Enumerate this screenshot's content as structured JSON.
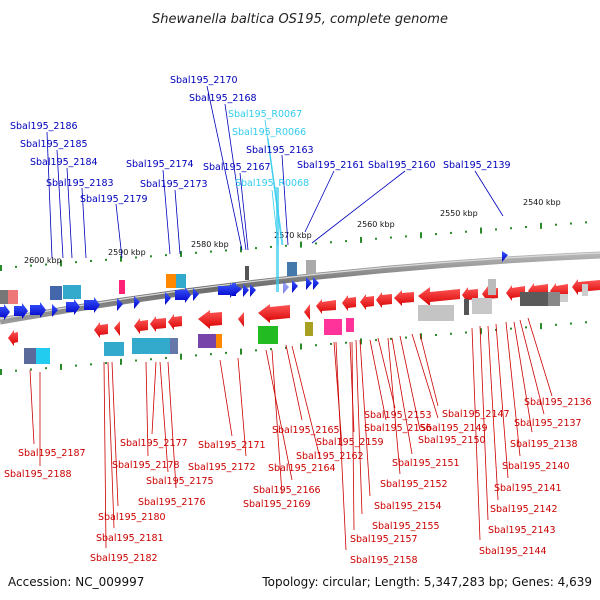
{
  "title": "Shewanella baltica OS195, complete genome",
  "footer": {
    "accession": "Accession: NC_009997",
    "info": "Topology: circular; Length: 5,347,283 bp; Genes: 4,639"
  },
  "colors": {
    "forward_gene": "#0000dd",
    "reverse_gene": "#ee0000",
    "forward_label": "#0000bb",
    "reverse_label": "#cc0000",
    "rna_label": "#33ccee",
    "backbone": "#7a7a7a",
    "tick": "#2a8a2a"
  },
  "scale_labels": [
    "2600 kbp",
    "2590 kbp",
    "2580 kbp",
    "2570 kbp",
    "2560 kbp",
    "2550 kbp",
    "2540 kbp"
  ],
  "labels_top": [
    "Sbal195_2170",
    "Sbal195_2168",
    "Sbal195_R0067",
    "Sbal195_R0066",
    "Sbal195_2186",
    "Sbal195_2185",
    "Sbal195_2163",
    "Sbal195_2184",
    "Sbal195_2174",
    "Sbal195_2167",
    "Sbal195_2161",
    "Sbal195_2160",
    "Sbal195_2139",
    "Sbal195_2183",
    "Sbal195_2173",
    "Sbal195_R0068",
    "Sbal195_2179"
  ],
  "labels_bottom": [
    "Sbal195_2136",
    "Sbal195_2147",
    "Sbal195_2137",
    "Sbal195_2153",
    "Sbal195_2156",
    "Sbal195_2149",
    "Sbal195_2165",
    "Sbal195_2159",
    "Sbal195_2177",
    "Sbal195_2171",
    "Sbal195_2150",
    "Sbal195_2138",
    "Sbal195_2187",
    "Sbal195_2162",
    "Sbal195_2178",
    "Sbal195_2172",
    "Sbal195_2164",
    "Sbal195_2151",
    "Sbal195_2140",
    "Sbal195_2188",
    "Sbal195_2175",
    "Sbal195_2152",
    "Sbal195_2141",
    "Sbal195_2166",
    "Sbal195_2176",
    "Sbal195_2169",
    "Sbal195_2154",
    "Sbal195_2142",
    "Sbal195_2180",
    "Sbal195_2155",
    "Sbal195_2143",
    "Sbal195_2181",
    "Sbal195_2157",
    "Sbal195_2144",
    "Sbal195_2182",
    "Sbal195_2158"
  ]
}
